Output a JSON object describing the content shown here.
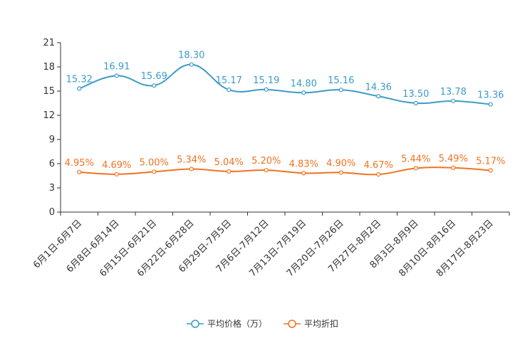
{
  "chart_data": {
    "type": "line",
    "title": "",
    "xlabel": "",
    "ylabel": "",
    "ylim": [
      0,
      21
    ],
    "yticks": [
      0,
      3,
      6,
      9,
      12,
      15,
      18,
      21
    ],
    "categories": [
      "6月1日-6月7日",
      "6月8日-6月14日",
      "6月15日-6月21日",
      "6月22日-6月28日",
      "6月29日-7月5日",
      "7月6日-7月12日",
      "7月13日-7月19日",
      "7月20日-7月26日",
      "7月27日-8月2日",
      "8月3日-8月9日",
      "8月10日-8月16日",
      "8月17日-8月23日"
    ],
    "series": [
      {
        "name": "平均价格（万）",
        "color": "#3b9bc9",
        "values": [
          15.32,
          16.91,
          15.69,
          18.3,
          15.17,
          15.19,
          14.8,
          15.16,
          14.36,
          13.5,
          13.78,
          13.36
        ],
        "labels": [
          "15.32",
          "16.91",
          "15.69",
          "18.30",
          "15.17",
          "15.19",
          "14.80",
          "15.16",
          "14.36",
          "13.50",
          "13.78",
          "13.36"
        ]
      },
      {
        "name": "平均折扣",
        "color": "#f07320",
        "values": [
          4.95,
          4.69,
          5.0,
          5.34,
          5.04,
          5.2,
          4.83,
          4.9,
          4.67,
          5.44,
          5.49,
          5.17
        ],
        "labels": [
          "4.95%",
          "4.69%",
          "5.00%",
          "5.34%",
          "5.04%",
          "5.20%",
          "4.83%",
          "4.90%",
          "4.67%",
          "5.44%",
          "5.49%",
          "5.17%"
        ]
      }
    ],
    "legend_position": "bottom-center",
    "grid": false,
    "axis_color": "#333333"
  }
}
